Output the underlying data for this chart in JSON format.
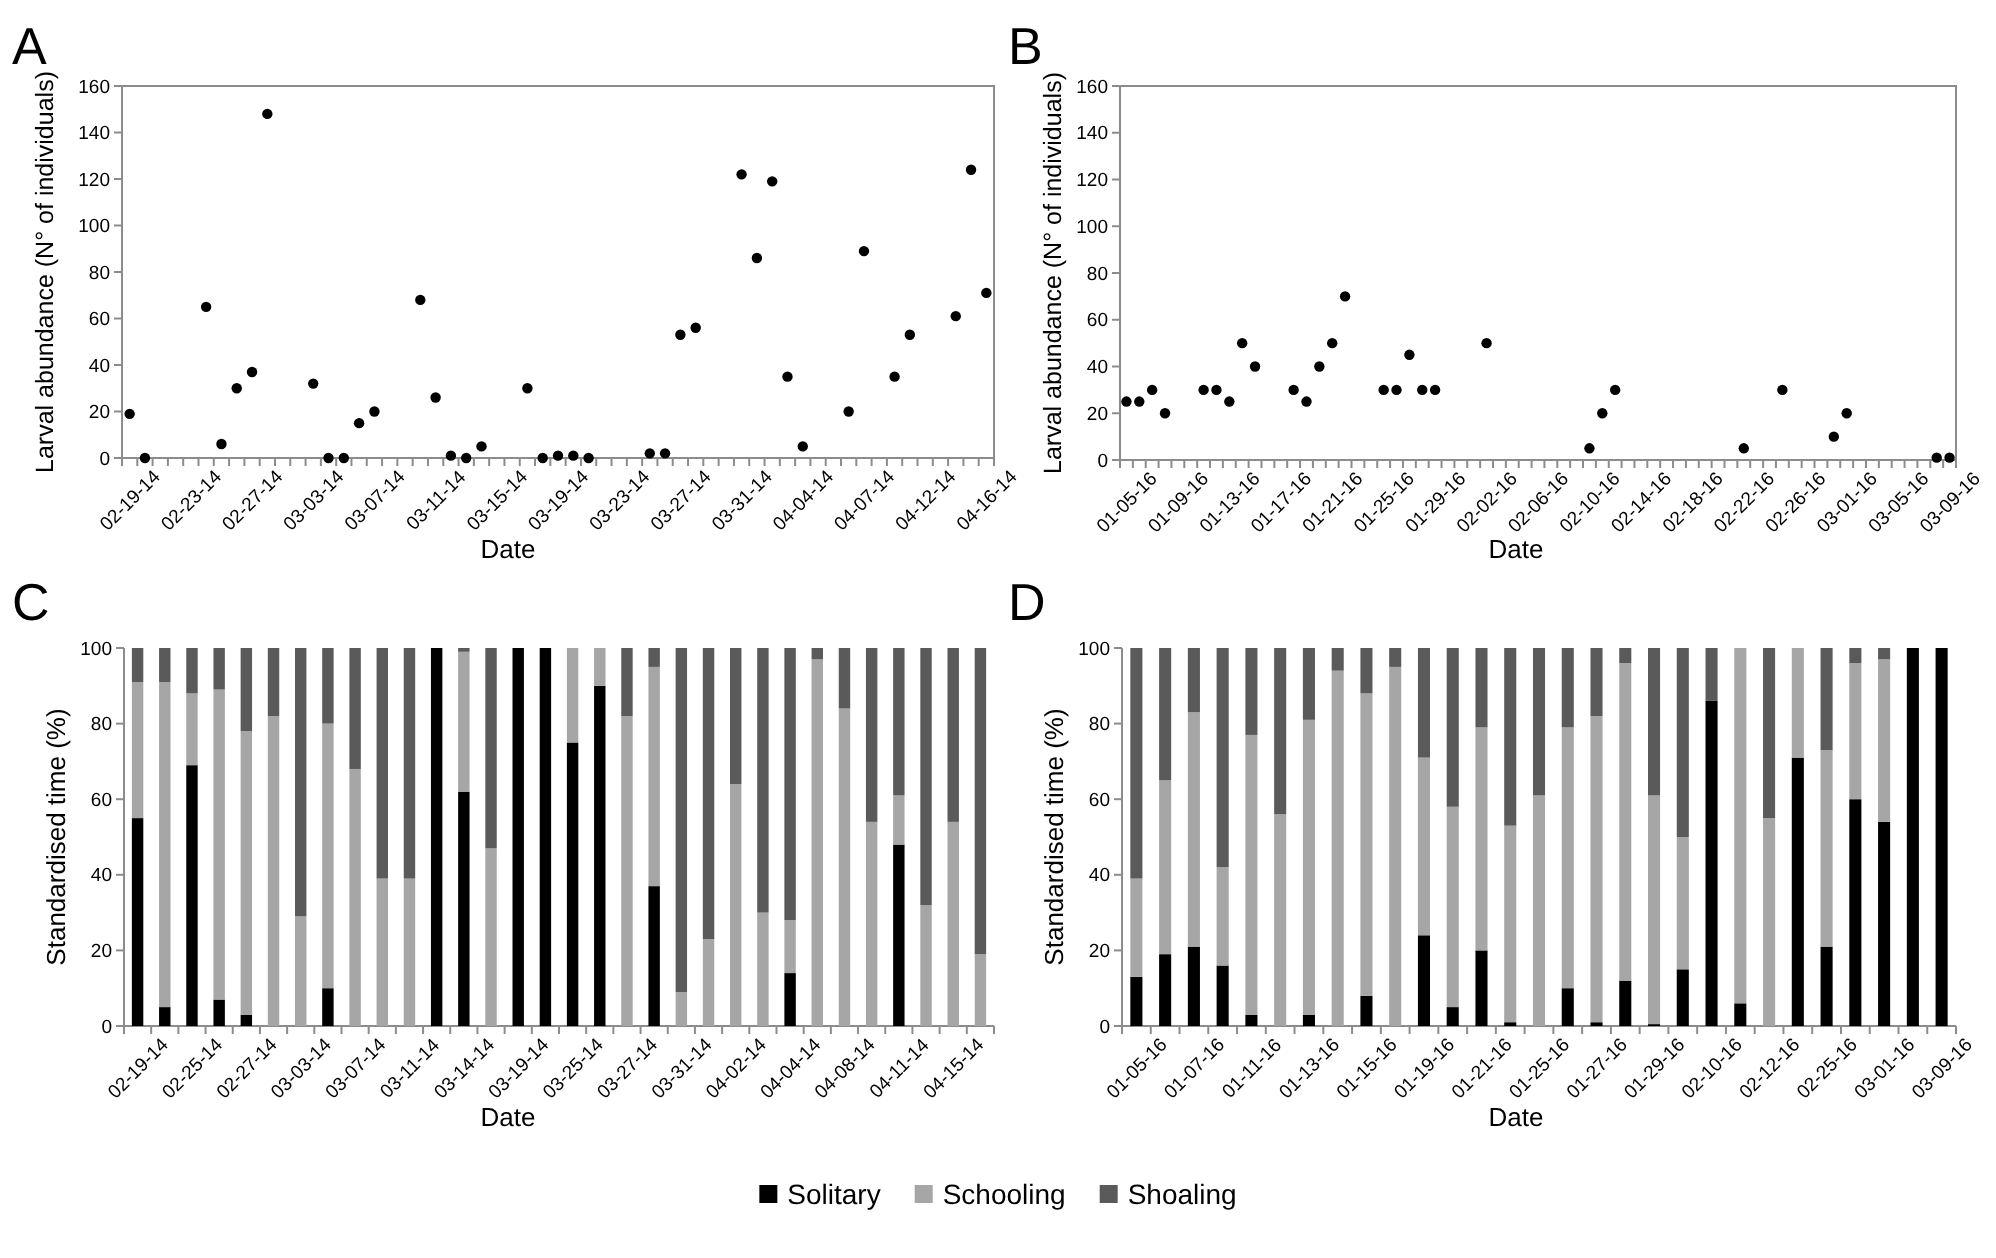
{
  "chart_data": [
    {
      "type": "scatter",
      "title": "A",
      "xlabel": "Date",
      "ylabel": "Larval abundance (N° of individuals)",
      "categories": [
        "02-19-14",
        null,
        null,
        null,
        "02-23-14",
        null,
        null,
        null,
        "02-27-14",
        null,
        null,
        null,
        "03-03-14",
        null,
        null,
        null,
        "03-07-14",
        null,
        null,
        null,
        "03-11-14",
        null,
        null,
        null,
        "03-15-14",
        null,
        null,
        null,
        "03-19-14",
        null,
        null,
        null,
        "03-23-14",
        null,
        null,
        null,
        "03-27-14",
        null,
        null,
        null,
        "03-31-14",
        null,
        null,
        null,
        "04-04-14",
        null,
        null,
        null,
        "04-07-14",
        null,
        null,
        null,
        "04-12-14",
        null,
        null,
        null,
        "04-16-14"
      ],
      "values": [
        19,
        0,
        null,
        null,
        null,
        65,
        6,
        30,
        37,
        148,
        null,
        null,
        32,
        0,
        0,
        15,
        20,
        null,
        null,
        68,
        26,
        1,
        0,
        5,
        null,
        null,
        30,
        0,
        1,
        1,
        0,
        null,
        null,
        null,
        2,
        2,
        53,
        56,
        null,
        null,
        122,
        86,
        119,
        35,
        5,
        null,
        null,
        20,
        89,
        null,
        35,
        53,
        null,
        null,
        61,
        124,
        71
      ],
      "color": "#000000",
      "marker": "circle",
      "ylim": [
        0,
        160
      ],
      "yticks": [
        0,
        20,
        40,
        60,
        80,
        100,
        120,
        140,
        160
      ]
    },
    {
      "type": "scatter",
      "title": "B",
      "xlabel": "Date",
      "ylabel": "Larval abundance (N° of individuals)",
      "categories": [
        "01-05-16",
        null,
        null,
        null,
        "01-09-16",
        null,
        null,
        null,
        "01-13-16",
        null,
        null,
        null,
        "01-17-16",
        null,
        null,
        null,
        "01-21-16",
        null,
        null,
        null,
        "01-25-16",
        null,
        null,
        null,
        "01-29-16",
        null,
        null,
        null,
        "02-02-16",
        null,
        null,
        null,
        "02-06-16",
        null,
        null,
        null,
        "02-10-16",
        null,
        null,
        null,
        "02-14-16",
        null,
        null,
        null,
        "02-18-16",
        null,
        null,
        null,
        "02-22-16",
        null,
        null,
        null,
        "02-26-16",
        null,
        null,
        null,
        "03-01-16",
        null,
        null,
        null,
        "03-05-16",
        null,
        null,
        null,
        "03-09-16"
      ],
      "values": [
        25,
        25,
        30,
        20,
        null,
        null,
        30,
        30,
        25,
        50,
        40,
        null,
        null,
        30,
        25,
        40,
        50,
        70,
        null,
        null,
        30,
        30,
        45,
        30,
        30,
        null,
        null,
        null,
        50,
        null,
        null,
        null,
        null,
        null,
        null,
        null,
        5,
        20,
        30,
        null,
        null,
        null,
        null,
        null,
        null,
        null,
        null,
        null,
        5,
        null,
        null,
        30,
        null,
        null,
        null,
        10,
        20,
        null,
        null,
        null,
        null,
        null,
        null,
        1,
        1
      ],
      "color": "#000000",
      "marker": "circle",
      "ylim": [
        0,
        160
      ],
      "yticks": [
        0,
        20,
        40,
        60,
        80,
        100,
        120,
        140,
        160
      ]
    },
    {
      "type": "bar",
      "title": "C",
      "xlabel": "Date",
      "ylabel": "Standardised time (%)",
      "categories": [
        "02-19-14",
        null,
        "02-25-14",
        null,
        "02-27-14",
        null,
        "03-03-14",
        null,
        "03-07-14",
        null,
        "03-11-14",
        null,
        "03-14-14",
        null,
        "03-19-14",
        null,
        "03-25-14",
        null,
        "03-27-14",
        null,
        "03-31-14",
        null,
        "04-02-14",
        null,
        "04-04-14",
        null,
        "04-08-14",
        null,
        "04-11-14",
        null,
        "04-15-14",
        null
      ],
      "series": [
        {
          "name": "Solitary",
          "color": "#000000",
          "values": [
            55,
            5,
            69,
            7,
            3,
            0,
            0,
            10,
            0,
            0,
            0,
            100,
            62,
            0,
            100,
            100,
            75,
            90,
            0,
            37,
            0,
            0,
            0,
            0,
            14,
            0,
            0,
            0,
            48,
            0,
            0,
            0
          ]
        },
        {
          "name": "Schooling",
          "color": "#a6a6a6",
          "values": [
            36,
            86,
            19,
            82,
            75,
            82,
            29,
            70,
            68,
            39,
            39,
            0,
            37,
            47,
            0,
            0,
            25,
            10,
            82,
            58,
            9,
            23,
            64,
            30,
            14,
            97,
            84,
            54,
            13,
            32,
            54,
            19
          ]
        },
        {
          "name": "Shoaling",
          "color": "#5a5a5a",
          "values": [
            9,
            9,
            12,
            11,
            22,
            18,
            71,
            20,
            32,
            61,
            61,
            0,
            1,
            53,
            0,
            0,
            0,
            0,
            18,
            5,
            91,
            77,
            36,
            70,
            72,
            3,
            16,
            46,
            39,
            68,
            46,
            81
          ]
        }
      ],
      "stacked": true,
      "ylim": [
        0,
        100
      ],
      "yticks": [
        0,
        20,
        40,
        60,
        80,
        100
      ],
      "legend": "bottom"
    },
    {
      "type": "bar",
      "title": "D",
      "xlabel": "Date",
      "ylabel": "Standardised time (%)",
      "categories": [
        "01-05-16",
        null,
        "01-07-16",
        null,
        "01-11-16",
        null,
        "01-13-16",
        null,
        "01-15-16",
        null,
        "01-19-16",
        null,
        "01-21-16",
        null,
        "01-25-16",
        null,
        "01-27-16",
        null,
        "01-29-16",
        null,
        "02-10-16",
        null,
        "02-12-16",
        null,
        "02-25-16",
        null,
        "03-01-16",
        null,
        "03-09-16"
      ],
      "series": [
        {
          "name": "Solitary",
          "color": "#000000",
          "values": [
            13,
            19,
            21,
            16,
            3,
            0,
            3,
            0,
            8,
            0,
            24,
            5,
            20,
            1,
            0,
            10,
            1,
            12,
            0.5,
            15,
            86,
            6,
            0,
            71,
            21,
            60,
            54,
            100,
            100
          ]
        },
        {
          "name": "Schooling",
          "color": "#a6a6a6",
          "values": [
            26,
            46,
            62,
            26,
            74,
            56,
            78,
            94,
            80,
            95,
            47,
            53,
            59,
            52,
            61,
            69,
            81,
            84,
            60.5,
            35,
            0,
            94,
            55,
            29,
            52,
            36,
            43,
            0,
            0
          ]
        },
        {
          "name": "Shoaling",
          "color": "#5a5a5a",
          "values": [
            61,
            35,
            17,
            58,
            23,
            44,
            19,
            6,
            12,
            5,
            29,
            42,
            21,
            47,
            39,
            21,
            18,
            4,
            39,
            50,
            14,
            0,
            45,
            0,
            27,
            4,
            3,
            0,
            0
          ]
        }
      ],
      "stacked": true,
      "ylim": [
        0,
        100
      ],
      "yticks": [
        0,
        20,
        40,
        60,
        80,
        100
      ],
      "legend": "bottom"
    }
  ]
}
